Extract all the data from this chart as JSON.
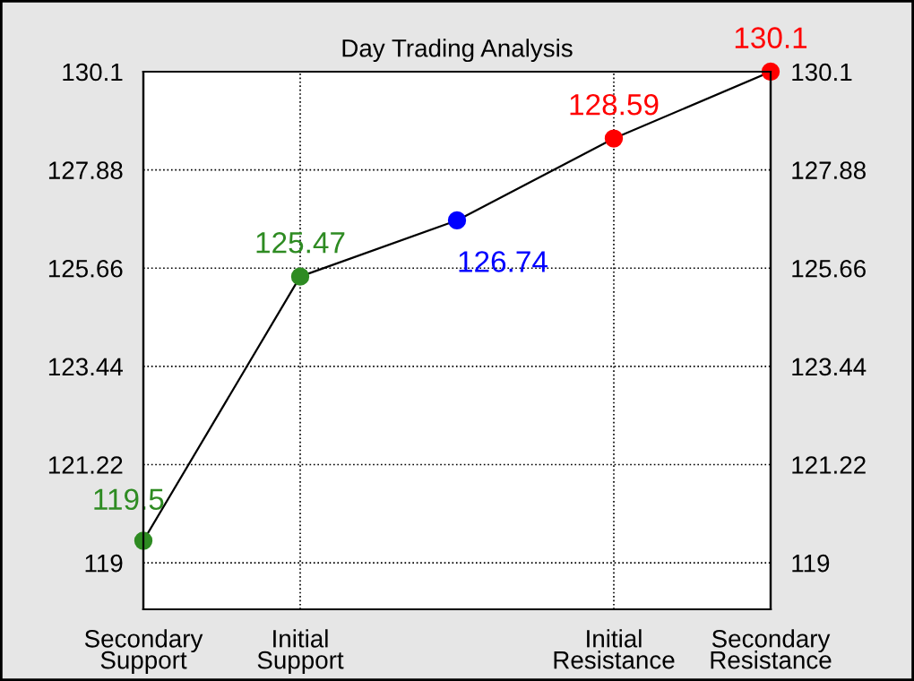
{
  "chart_data": {
    "type": "line",
    "title": "Day Trading Analysis",
    "categories": [
      "Secondary\nSupport",
      "Initial\nSupport",
      null,
      "Initial\nResistance",
      "Secondary\nResistance"
    ],
    "ylim": [
      117.95,
      130.1
    ],
    "yticks": [
      119,
      121.22,
      123.44,
      125.66,
      127.88,
      130.1
    ],
    "y2lim": [
      117.95,
      130.1
    ],
    "y2ticks": [
      119,
      121.22,
      123.44,
      125.66,
      127.88,
      130.1
    ],
    "series": [
      {
        "color": "#000000",
        "values": [
          119.5,
          125.47,
          126.74,
          128.59,
          130.1
        ],
        "colors": [
          "#2e8b22",
          "#2e8b22",
          "#0000ff",
          "#ff0000",
          "#ff0000"
        ]
      }
    ],
    "data_labels": true,
    "marker": "circle",
    "line_style": "solid",
    "grid": true,
    "legend": false
  }
}
